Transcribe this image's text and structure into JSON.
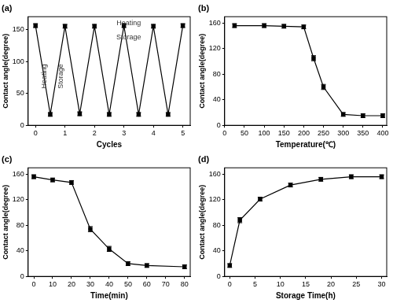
{
  "chart_data": [
    {
      "type": "line",
      "title": "(a)",
      "x_label": "Cycles",
      "y_label": "Contact angle(degree)",
      "x": [
        0,
        0.5,
        1,
        1.5,
        2,
        2.5,
        3,
        3.5,
        4,
        4.5,
        5
      ],
      "values": [
        156,
        17,
        155,
        18,
        155,
        17,
        156,
        17,
        155,
        17,
        156
      ],
      "errors": [
        3,
        3,
        3,
        3,
        3,
        3,
        3,
        3,
        3,
        3,
        3
      ],
      "xlim": [
        -0.25,
        5.25
      ],
      "xticks": [
        0,
        1,
        2,
        3,
        4,
        5
      ],
      "ylim": [
        0,
        170
      ],
      "yticks": [
        0,
        50,
        100,
        150
      ],
      "grid": false,
      "color": "#000000",
      "marker": "square",
      "annotations": [
        "Heating",
        "Storage",
        "Heating",
        "Storage"
      ]
    },
    {
      "type": "line",
      "title": "(b)",
      "x_label": "Temperature(℃)",
      "y_label": "Contact angle(degree)",
      "x": [
        25,
        100,
        150,
        200,
        225,
        250,
        300,
        350,
        400
      ],
      "values": [
        156,
        156,
        155,
        154,
        105,
        60,
        17,
        15,
        15
      ],
      "errors": [
        3,
        3,
        3,
        3,
        4,
        4,
        3,
        3,
        3
      ],
      "xlim": [
        0,
        410
      ],
      "xticks": [
        0,
        50,
        100,
        150,
        200,
        250,
        300,
        350,
        400
      ],
      "ylim": [
        0,
        170
      ],
      "yticks": [
        0,
        40,
        80,
        120,
        160
      ],
      "grid": false,
      "color": "#000000",
      "marker": "square"
    },
    {
      "type": "line",
      "title": "(c)",
      "x_label": "Time(min)",
      "y_label": "Contact angle(degree)",
      "x": [
        0,
        10,
        20,
        30,
        40,
        50,
        60,
        80
      ],
      "values": [
        156,
        151,
        147,
        74,
        43,
        20,
        17,
        15
      ],
      "errors": [
        3,
        3,
        3,
        4,
        4,
        3,
        3,
        3
      ],
      "xlim": [
        -3,
        83
      ],
      "xticks": [
        0,
        10,
        20,
        30,
        40,
        50,
        60,
        70,
        80
      ],
      "ylim": [
        0,
        170
      ],
      "yticks": [
        0,
        40,
        80,
        120,
        160
      ],
      "grid": false,
      "color": "#000000",
      "marker": "square"
    },
    {
      "type": "line",
      "title": "(d)",
      "x_label": "Storage Time(h)",
      "y_label": "Contact angle(degree)",
      "x": [
        0,
        2,
        6,
        12,
        18,
        24,
        30
      ],
      "values": [
        17,
        88,
        121,
        143,
        152,
        156,
        156
      ],
      "errors": [
        3,
        4,
        3,
        3,
        3,
        3,
        3
      ],
      "xlim": [
        -1,
        31
      ],
      "xticks": [
        0,
        5,
        10,
        15,
        20,
        25,
        30
      ],
      "ylim": [
        0,
        170
      ],
      "yticks": [
        0,
        40,
        80,
        120,
        160
      ],
      "grid": false,
      "color": "#000000",
      "marker": "square"
    }
  ]
}
